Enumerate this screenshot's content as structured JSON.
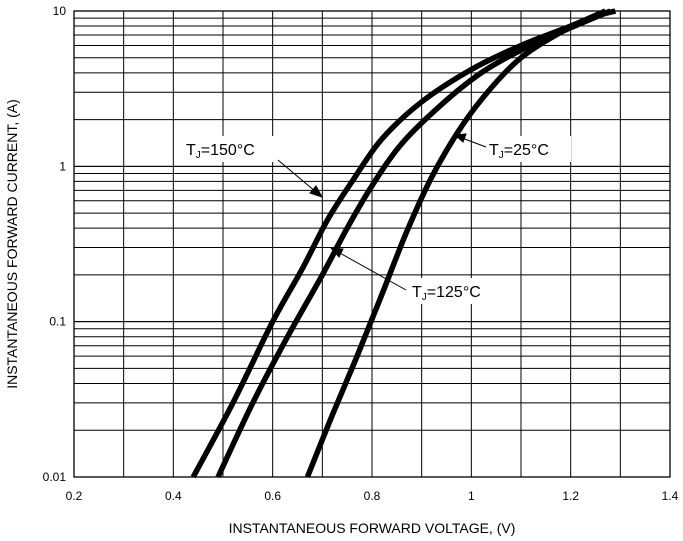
{
  "chart_data": {
    "type": "line",
    "title": "",
    "xlabel": "INSTANTANEOUS FORWARD VOLTAGE, (V)",
    "ylabel": "INSTANTANEOUS FORWARD CURRENT, (A)",
    "xlim": [
      0.2,
      1.4
    ],
    "ylim": [
      0.01,
      10
    ],
    "y_scale": "log",
    "grid": true,
    "legend": "none",
    "x_ticks": [
      "0.2",
      "0.4",
      "0.6",
      "0.8",
      "1",
      "1.2",
      "1.4"
    ],
    "y_ticks": [
      "0.01",
      "0.1",
      "1",
      "10"
    ],
    "series": [
      {
        "name": "TJ=150°C",
        "x": [
          0.44,
          0.52,
          0.6,
          0.66,
          0.71,
          0.76,
          0.82,
          0.9,
          1.0,
          1.1,
          1.2,
          1.27
        ],
        "y": [
          0.01,
          0.03,
          0.1,
          0.22,
          0.45,
          0.8,
          1.5,
          2.6,
          4.2,
          6.0,
          8.0,
          10.0
        ]
      },
      {
        "name": "TJ=125°C",
        "x": [
          0.49,
          0.56,
          0.63,
          0.7,
          0.75,
          0.8,
          0.86,
          0.94,
          1.02,
          1.1,
          1.2,
          1.28
        ],
        "y": [
          0.01,
          0.03,
          0.08,
          0.2,
          0.4,
          0.75,
          1.4,
          2.5,
          4.0,
          5.6,
          7.8,
          10.0
        ]
      },
      {
        "name": "TJ=25°C",
        "x": [
          0.67,
          0.72,
          0.77,
          0.82,
          0.87,
          0.92,
          0.98,
          1.04,
          1.1,
          1.17,
          1.24,
          1.29
        ],
        "y": [
          0.01,
          0.025,
          0.06,
          0.15,
          0.38,
          0.85,
          1.8,
          3.2,
          5.0,
          7.0,
          9.0,
          10.0
        ]
      }
    ],
    "annotations": [
      {
        "main": "T",
        "sub": "J",
        "rest": "=150°C"
      },
      {
        "main": "T",
        "sub": "J",
        "rest": "=125°C"
      },
      {
        "main": "T",
        "sub": "J",
        "rest": "=25°C"
      }
    ],
    "colors": {
      "line": "#000000",
      "grid": "#000000",
      "background": "#ffffff"
    }
  }
}
